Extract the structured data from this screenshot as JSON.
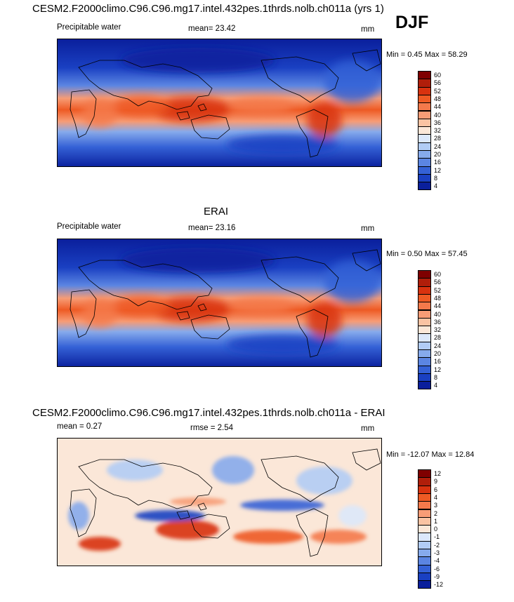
{
  "header": {
    "title": "CESM2.F2000climo.C96.C96.mg17.intel.432pes.1thrds.nolb.ch011a (yrs 1)",
    "season": "DJF"
  },
  "chart_data": [
    {
      "type": "heatmap",
      "title": "CESM2.F2000climo.C96.C96.mg17.intel.432pes.1thrds.nolb.ch011a (yrs 1)",
      "variable": "Precipitable water",
      "stat": "mean=  23.42",
      "units": "mm",
      "minmax": "Min =   0.45 Max =  58.29",
      "levels": [
        "60",
        "56",
        "52",
        "48",
        "44",
        "40",
        "36",
        "32",
        "28",
        "24",
        "20",
        "16",
        "12",
        "8",
        "4"
      ],
      "palette": "blue-white-red"
    },
    {
      "type": "heatmap",
      "title": "ERAI",
      "variable": "Precipitable water",
      "stat": "mean=  23.16",
      "units": "mm",
      "minmax": "Min =   0.50 Max =  57.45",
      "levels": [
        "60",
        "56",
        "52",
        "48",
        "44",
        "40",
        "36",
        "32",
        "28",
        "24",
        "20",
        "16",
        "12",
        "8",
        "4"
      ],
      "palette": "blue-white-red"
    },
    {
      "type": "heatmap",
      "title": "CESM2.F2000climo.C96.C96.mg17.intel.432pes.1thrds.nolb.ch011a - ERAI",
      "stat": "mean =   0.27",
      "stat2": "rmse =   2.54",
      "units": "mm",
      "minmax": "Min = -12.07 Max =  12.84",
      "levels": [
        "12",
        "9",
        "6",
        "4",
        "3",
        "2",
        "1",
        "0",
        "-1",
        "-2",
        "-3",
        "-4",
        "-6",
        "-9",
        "-12"
      ],
      "palette": "diverging blue-white-red"
    }
  ],
  "colors": {
    "scale": [
      "#7f0000",
      "#b01e0a",
      "#d8320f",
      "#ee5a24",
      "#f4794b",
      "#f79c76",
      "#fac3a3",
      "#fbe7d8",
      "#dce8fb",
      "#b1ccf5",
      "#86aaec",
      "#5b85e2",
      "#3461d6",
      "#1a40c2",
      "#0a1f9c"
    ]
  }
}
